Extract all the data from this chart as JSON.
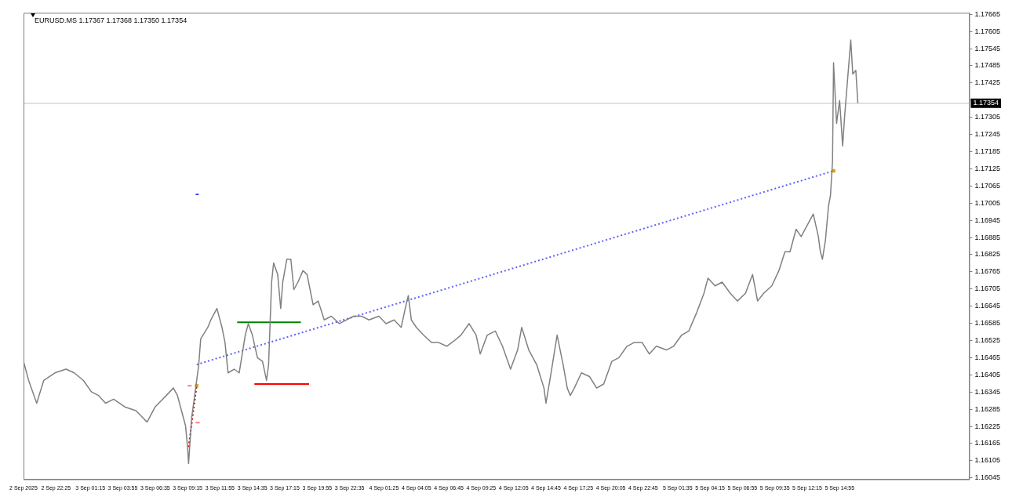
{
  "chart_data": {
    "type": "line",
    "title": "EURUSD.MS 1.17367 1.17368 1.17350 1.17354",
    "legend": false,
    "grid": false,
    "marker": "none",
    "xlim": [
      "2025-09-02T19:45",
      "2025-09-06T01:35"
    ],
    "ylim": [
      1.1604,
      1.1767
    ],
    "xticks": [
      {
        "value": "2025-09-02T19:45",
        "label": "2 Sep 2025"
      },
      {
        "value": "2025-09-02T22:25",
        "label": "2 Sep 22:25"
      },
      {
        "value": "2025-09-03T01:15",
        "label": "3 Sep 01:15"
      },
      {
        "value": "2025-09-03T03:55",
        "label": "3 Sep 03:55"
      },
      {
        "value": "2025-09-03T06:35",
        "label": "3 Sep 06:35"
      },
      {
        "value": "2025-09-03T09:15",
        "label": "3 Sep 09:15"
      },
      {
        "value": "2025-09-03T11:55",
        "label": "3 Sep 11:55"
      },
      {
        "value": "2025-09-03T14:35",
        "label": "3 Sep 14:35"
      },
      {
        "value": "2025-09-03T17:15",
        "label": "3 Sep 17:15"
      },
      {
        "value": "2025-09-03T19:55",
        "label": "3 Sep 19:55"
      },
      {
        "value": "2025-09-03T22:35",
        "label": "3 Sep 22:35"
      },
      {
        "value": "2025-09-04T01:25",
        "label": "4 Sep 01:25"
      },
      {
        "value": "2025-09-04T04:05",
        "label": "4 Sep 04:05"
      },
      {
        "value": "2025-09-04T06:45",
        "label": "4 Sep 06:45"
      },
      {
        "value": "2025-09-04T09:25",
        "label": "4 Sep 09:25"
      },
      {
        "value": "2025-09-04T12:05",
        "label": "4 Sep 12:05"
      },
      {
        "value": "2025-09-04T14:45",
        "label": "4 Sep 14:45"
      },
      {
        "value": "2025-09-04T17:25",
        "label": "4 Sep 17:25"
      },
      {
        "value": "2025-09-04T20:05",
        "label": "4 Sep 20:05"
      },
      {
        "value": "2025-09-04T22:45",
        "label": "4 Sep 22:45"
      },
      {
        "value": "2025-09-05T01:35",
        "label": "5 Sep 01:35"
      },
      {
        "value": "2025-09-05T04:15",
        "label": "5 Sep 04:15"
      },
      {
        "value": "2025-09-05T06:55",
        "label": "5 Sep 06:55"
      },
      {
        "value": "2025-09-05T09:35",
        "label": "5 Sep 09:35"
      },
      {
        "value": "2025-09-05T12:15",
        "label": "5 Sep 12:15"
      },
      {
        "value": "2025-09-05T14:55",
        "label": "5 Sep 14:55"
      }
    ],
    "yticks": [
      1.16045,
      1.16105,
      1.16165,
      1.16225,
      1.16285,
      1.16345,
      1.16405,
      1.16465,
      1.16525,
      1.16585,
      1.16645,
      1.16705,
      1.16765,
      1.16825,
      1.16885,
      1.16945,
      1.17005,
      1.17065,
      1.17125,
      1.17185,
      1.17245,
      1.17305,
      {
        "value": 1.17365,
        "label": null
      },
      1.17425,
      1.17485,
      1.17545,
      1.17605,
      1.17665
    ],
    "ref_lines": [
      {
        "axis": "y",
        "value": 1.17354,
        "label": "1.17354",
        "color": "#c0c0c0"
      }
    ],
    "series": [
      {
        "color": "#808080",
        "x": [
          "2025-09-02T19:45",
          "2025-09-02T20:10",
          "2025-09-02T20:50",
          "2025-09-02T21:25",
          "2025-09-02T22:20",
          "2025-09-02T23:15",
          "2025-09-02T23:55",
          "2025-09-03T00:40",
          "2025-09-03T01:20",
          "2025-09-03T01:55",
          "2025-09-03T02:30",
          "2025-09-03T03:10",
          "2025-09-03T04:05",
          "2025-09-03T05:00",
          "2025-09-03T05:55",
          "2025-09-03T06:35",
          "2025-09-03T07:30",
          "2025-09-03T08:05",
          "2025-09-03T08:25",
          "2025-09-03T08:45",
          "2025-09-03T09:05",
          "2025-09-03T09:15",
          "2025-09-03T09:20",
          "2025-09-03T09:35",
          "2025-09-03T09:55",
          "2025-09-03T10:10",
          "2025-09-03T10:20",
          "2025-09-03T10:55",
          "2025-09-03T11:10",
          "2025-09-03T11:40",
          "2025-09-03T12:05",
          "2025-09-03T12:20",
          "2025-09-03T12:35",
          "2025-09-03T13:05",
          "2025-09-03T13:30",
          "2025-09-03T14:00",
          "2025-09-03T14:15",
          "2025-09-03T14:35",
          "2025-09-03T15:00",
          "2025-09-03T15:25",
          "2025-09-03T15:45",
          "2025-09-03T15:55",
          "2025-09-03T16:10",
          "2025-09-03T16:20",
          "2025-09-03T16:40",
          "2025-09-03T16:55",
          "2025-09-03T17:05",
          "2025-09-03T17:25",
          "2025-09-03T17:45",
          "2025-09-03T18:00",
          "2025-09-03T18:20",
          "2025-09-03T18:45",
          "2025-09-03T19:05",
          "2025-09-03T19:35",
          "2025-09-03T20:00",
          "2025-09-03T20:30",
          "2025-09-03T21:05",
          "2025-09-03T21:45",
          "2025-09-03T22:20",
          "2025-09-03T22:55",
          "2025-09-03T23:35",
          "2025-09-04T00:10",
          "2025-09-04T01:00",
          "2025-09-04T01:35",
          "2025-09-04T02:15",
          "2025-09-04T02:50",
          "2025-09-04T03:10",
          "2025-09-04T03:25",
          "2025-09-04T03:40",
          "2025-09-04T04:05",
          "2025-09-04T04:40",
          "2025-09-04T05:20",
          "2025-09-04T05:55",
          "2025-09-04T06:35",
          "2025-09-04T07:10",
          "2025-09-04T07:45",
          "2025-09-04T08:25",
          "2025-09-04T09:00",
          "2025-09-04T09:20",
          "2025-09-04T09:55",
          "2025-09-04T10:35",
          "2025-09-04T11:10",
          "2025-09-04T11:50",
          "2025-09-04T12:25",
          "2025-09-04T12:45",
          "2025-09-04T13:20",
          "2025-09-04T14:00",
          "2025-09-04T14:35",
          "2025-09-04T14:45",
          "2025-09-04T15:10",
          "2025-09-04T15:40",
          "2025-09-04T16:10",
          "2025-09-04T16:30",
          "2025-09-04T16:45",
          "2025-09-04T17:05",
          "2025-09-04T17:40",
          "2025-09-04T18:20",
          "2025-09-04T18:55",
          "2025-09-04T19:30",
          "2025-09-04T20:10",
          "2025-09-04T20:45",
          "2025-09-04T21:25",
          "2025-09-04T22:00",
          "2025-09-04T22:40",
          "2025-09-04T23:15",
          "2025-09-04T23:50",
          "2025-09-05T00:40",
          "2025-09-05T01:15",
          "2025-09-05T01:55",
          "2025-09-05T02:30",
          "2025-09-05T03:10",
          "2025-09-05T03:45",
          "2025-09-05T04:05",
          "2025-09-05T04:40",
          "2025-09-05T05:15",
          "2025-09-05T05:55",
          "2025-09-05T06:30",
          "2025-09-05T07:10",
          "2025-09-05T07:45",
          "2025-09-05T08:10",
          "2025-09-05T08:40",
          "2025-09-05T09:20",
          "2025-09-05T09:55",
          "2025-09-05T10:25",
          "2025-09-05T10:50",
          "2025-09-05T11:20",
          "2025-09-05T11:45",
          "2025-09-05T12:25",
          "2025-09-05T12:45",
          "2025-09-05T13:10",
          "2025-09-05T13:20",
          "2025-09-05T13:30",
          "2025-09-05T13:45",
          "2025-09-05T14:00",
          "2025-09-05T14:10",
          "2025-09-05T14:20",
          "2025-09-05T14:25",
          "2025-09-05T14:40",
          "2025-09-05T14:55",
          "2025-09-05T15:10",
          "2025-09-05T15:20",
          "2025-09-05T15:35",
          "2025-09-05T15:50",
          "2025-09-05T16:00",
          "2025-09-05T16:15",
          "2025-09-05T16:25"
        ],
        "values": [
          1.16452,
          1.16386,
          1.16306,
          1.16386,
          1.16412,
          1.16425,
          1.16412,
          1.16386,
          1.16346,
          1.16333,
          1.16306,
          1.1632,
          1.16293,
          1.1628,
          1.1624,
          1.16293,
          1.16333,
          1.16359,
          1.16333,
          1.1628,
          1.16227,
          1.16153,
          1.16095,
          1.16254,
          1.16359,
          1.16439,
          1.16531,
          1.16571,
          1.16597,
          1.16637,
          1.16571,
          1.16518,
          1.16412,
          1.16425,
          1.16412,
          1.16544,
          1.16584,
          1.16544,
          1.16465,
          1.16452,
          1.16386,
          1.16439,
          1.16729,
          1.16796,
          1.16756,
          1.16637,
          1.16729,
          1.16809,
          1.16809,
          1.16703,
          1.16729,
          1.16769,
          1.16756,
          1.1665,
          1.16663,
          1.16597,
          1.1661,
          1.16584,
          1.16597,
          1.1661,
          1.1661,
          1.16597,
          1.1661,
          1.16584,
          1.16597,
          1.16571,
          1.16637,
          1.16682,
          1.16597,
          1.16571,
          1.16544,
          1.16518,
          1.16518,
          1.16505,
          1.16523,
          1.16544,
          1.16584,
          1.16544,
          1.16478,
          1.16544,
          1.16558,
          1.16505,
          1.16425,
          1.16492,
          1.16571,
          1.16492,
          1.16439,
          1.16359,
          1.16306,
          1.16412,
          1.16544,
          1.16439,
          1.16359,
          1.16333,
          1.16359,
          1.16412,
          1.16399,
          1.16359,
          1.16373,
          1.16452,
          1.16465,
          1.16505,
          1.16518,
          1.16518,
          1.16478,
          1.16505,
          1.16492,
          1.16505,
          1.16544,
          1.16558,
          1.16624,
          1.1669,
          1.16743,
          1.16716,
          1.16729,
          1.1669,
          1.16663,
          1.1669,
          1.16756,
          1.16663,
          1.1669,
          1.16716,
          1.16769,
          1.16835,
          1.16835,
          1.16914,
          1.16888,
          1.16941,
          1.16967,
          1.16888,
          1.16835,
          1.16809,
          1.16875,
          1.16994,
          1.17033,
          1.17152,
          1.17496,
          1.17284,
          1.17364,
          1.17205,
          1.17311,
          1.17443,
          1.17575,
          1.17456,
          1.17469,
          1.17354
        ]
      },
      {
        "color": "#6060ff",
        "line_style": "dotted",
        "x": [
          "2025-09-03T10:00",
          "2025-09-05T14:25"
        ],
        "values": [
          1.16441,
          1.17118
        ]
      },
      {
        "color": "#008000",
        "x": [
          "2025-09-03T13:20",
          "2025-09-03T18:35"
        ],
        "values": [
          1.16589,
          1.16589
        ]
      },
      {
        "color": "#ff0000",
        "x": [
          "2025-09-03T14:45",
          "2025-09-03T19:15"
        ],
        "values": [
          1.16373,
          1.16373
        ]
      },
      {
        "color": "#c00000",
        "line_style": "dotted",
        "x": [
          "2025-09-03T09:20",
          "2025-09-03T10:00"
        ],
        "values": [
          1.16153,
          1.16367
        ]
      },
      {
        "color": "#4040ff",
        "x": [
          "2025-09-03T09:55",
          "2025-09-03T10:10"
        ],
        "values": [
          1.17036,
          1.17036
        ]
      },
      {
        "color": "#ff8080",
        "x": [
          "2025-09-03T09:15",
          "2025-09-03T09:35"
        ],
        "values": [
          1.16367,
          1.16367
        ]
      },
      {
        "color": "#ff8080",
        "x": [
          "2025-09-03T09:55",
          "2025-09-03T10:15"
        ],
        "values": [
          1.16238,
          1.16238
        ]
      },
      {
        "type": "scatter",
        "color": "#e0a000",
        "marker": "square",
        "x": [
          "2025-09-03T10:00",
          "2025-09-05T14:25"
        ],
        "values": [
          1.16367,
          1.17118
        ]
      }
    ]
  }
}
